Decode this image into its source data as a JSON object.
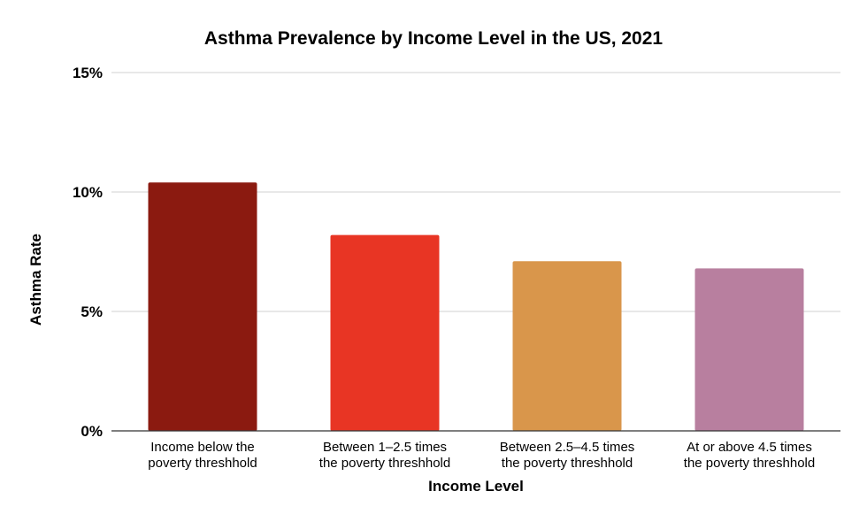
{
  "chart_data": {
    "type": "bar",
    "title": "Asthma Prevalence by Income Level in the US, 2021",
    "xlabel": "Income Level",
    "ylabel": "Asthma Rate",
    "categories": [
      [
        "Income below the",
        "poverty threshhold"
      ],
      [
        "Between 1–2.5 times",
        "the poverty threshhold"
      ],
      [
        "Between 2.5–4.5 times",
        "the poverty threshhold"
      ],
      [
        "At or above 4.5 times",
        "the poverty threshhold"
      ]
    ],
    "values": [
      10.4,
      8.2,
      7.1,
      6.8
    ],
    "colors": [
      "#8b1a10",
      "#e83524",
      "#d9964b",
      "#b87f9f"
    ],
    "ylim": [
      0,
      15
    ],
    "yticks": [
      0,
      5,
      10,
      15
    ],
    "ytick_labels": [
      "0%",
      "5%",
      "10%",
      "15%"
    ],
    "grid": true,
    "legend": "none"
  }
}
